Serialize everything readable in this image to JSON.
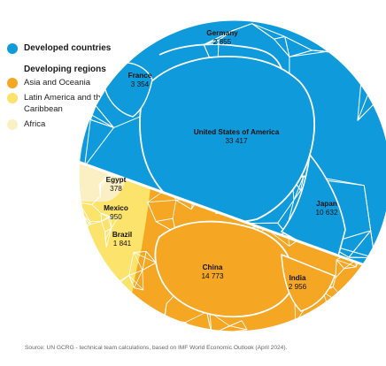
{
  "legend": {
    "developed": "Developed countries",
    "developing_heading": "Developing regions",
    "asia": "Asia and Oceania",
    "latam": "Latin America and the Caribbean",
    "africa": "Africa"
  },
  "colors": {
    "developed": "#0f9bdb",
    "asia": "#f5a623",
    "latam": "#fce36b",
    "africa": "#fbf0c4",
    "cell_border": "#ffffff"
  },
  "chart_data": {
    "type": "voronoi-treemap",
    "title": "",
    "groups": [
      {
        "name": "Developed countries",
        "color_key": "developed"
      },
      {
        "name": "Asia and Oceania",
        "color_key": "asia"
      },
      {
        "name": "Latin America and the Caribbean",
        "color_key": "latam"
      },
      {
        "name": "Africa",
        "color_key": "africa"
      }
    ],
    "labeled_cells": [
      {
        "name": "United States of America",
        "value": "33 417",
        "group": "Developed countries"
      },
      {
        "name": "Japan",
        "value": "10 632",
        "group": "Developed countries"
      },
      {
        "name": "France",
        "value": "3 354",
        "group": "Developed countries"
      },
      {
        "name": "Germany",
        "value": "2 855",
        "group": "Developed countries"
      },
      {
        "name": "China",
        "value": "14 773",
        "group": "Asia and Oceania"
      },
      {
        "name": "India",
        "value": "2 956",
        "group": "Asia and Oceania"
      },
      {
        "name": "Brazil",
        "value": "1 841",
        "group": "Latin America and the Caribbean"
      },
      {
        "name": "Mexico",
        "value": "950",
        "group": "Latin America and the Caribbean"
      },
      {
        "name": "Egypt",
        "value": "378",
        "group": "Africa"
      }
    ]
  },
  "source": "Source:  UN GCRG - technical team calculations, based on IMF World Economic Outlook (April 2024)."
}
